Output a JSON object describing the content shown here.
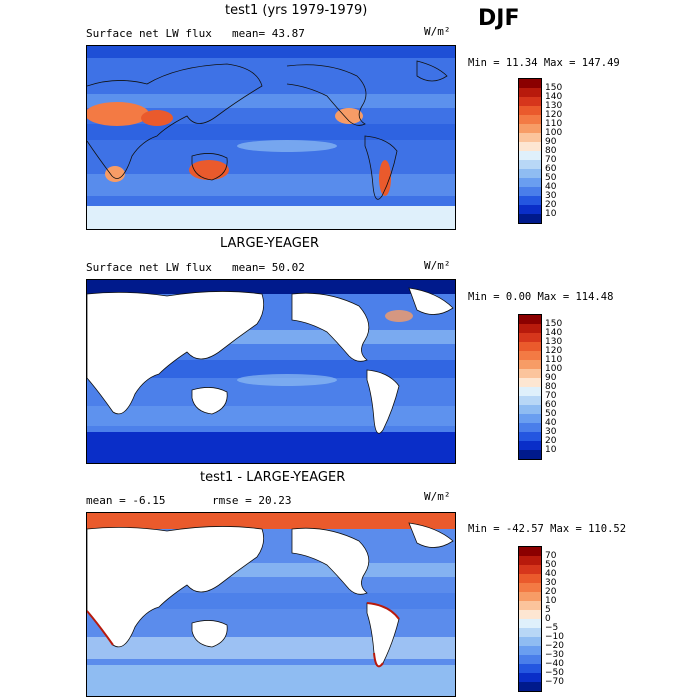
{
  "season": "DJF",
  "panels": [
    {
      "title": "test1 (yrs 1979-1979)",
      "left_text": "Surface net LW flux",
      "stat_text": "mean=  43.87",
      "units": "W/m²",
      "minmax": "Min =  11.34 Max = 147.49",
      "colorbar": {
        "labels": [
          "150",
          "140",
          "130",
          "120",
          "110",
          "100",
          "90",
          "80",
          "70",
          "60",
          "50",
          "40",
          "30",
          "20",
          "10"
        ],
        "colors": [
          "#8b0000",
          "#b81a0c",
          "#d6361c",
          "#ea5a2c",
          "#f37a44",
          "#f79c66",
          "#fbc49c",
          "#fde6d2",
          "#dff0fb",
          "#b8d7f6",
          "#8fbcf2",
          "#6a9ef0",
          "#4a7eea",
          "#2456e0",
          "#0a2ec8",
          "#001a8c"
        ]
      },
      "ocean_color": "#3e72e6",
      "land_fill": "#3e72e6"
    },
    {
      "title": "LARGE-YEAGER",
      "left_text": "Surface net LW flux",
      "stat_text": "mean=  50.02",
      "units": "W/m²",
      "minmax": "Min =   0.00 Max = 114.48",
      "colorbar": {
        "labels": [
          "150",
          "140",
          "130",
          "120",
          "110",
          "100",
          "90",
          "80",
          "70",
          "60",
          "50",
          "40",
          "30",
          "20",
          "10"
        ],
        "colors": [
          "#8b0000",
          "#b81a0c",
          "#d6361c",
          "#ea5a2c",
          "#f37a44",
          "#f79c66",
          "#fbc49c",
          "#fde6d2",
          "#dff0fb",
          "#b8d7f6",
          "#8fbcf2",
          "#6a9ef0",
          "#4a7eea",
          "#2456e0",
          "#0a2ec8",
          "#001a8c"
        ]
      },
      "ocean_color": "#4c80ea",
      "land_fill": "#ffffff"
    },
    {
      "title": "test1 - LARGE-YEAGER",
      "left_text": "mean =  -6.15",
      "stat_text": "rmse =  20.23",
      "units": "W/m²",
      "minmax": "Min = -42.57 Max = 110.52",
      "colorbar": {
        "labels": [
          "70",
          "50",
          "40",
          "30",
          "20",
          "10",
          "5",
          "0",
          "−5",
          "−10",
          "−20",
          "−30",
          "−40",
          "−50",
          "−70"
        ],
        "colors": [
          "#8b0000",
          "#b81a0c",
          "#d6361c",
          "#ea5a2c",
          "#f37a44",
          "#f79c66",
          "#fbc49c",
          "#fde6d2",
          "#dff0fb",
          "#b8d7f6",
          "#8fbcf2",
          "#6a9ef0",
          "#4a7eea",
          "#2456e0",
          "#0a2ec8",
          "#001a8c"
        ]
      },
      "ocean_color": "#5b8cec",
      "land_fill": "#ffffff"
    }
  ]
}
